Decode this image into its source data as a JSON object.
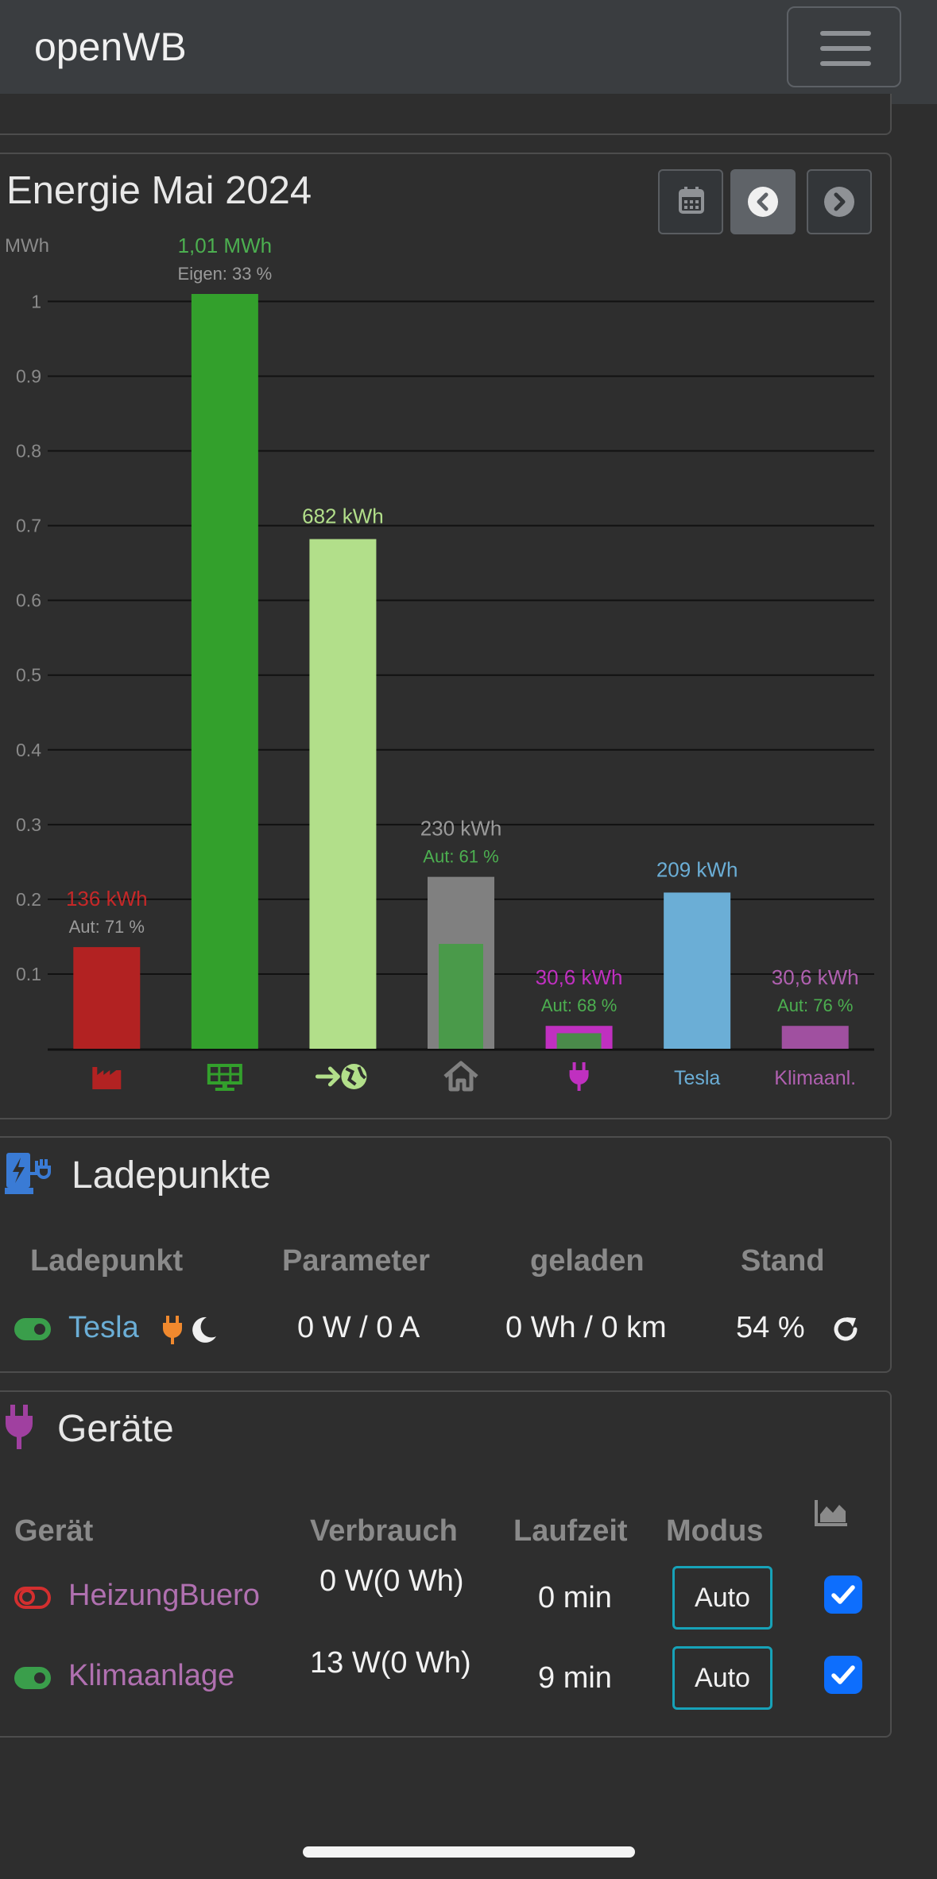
{
  "navbar": {
    "brand": "openWB",
    "menu_icon": "hamburger-icon"
  },
  "energy": {
    "title": "Energie Mai 2024",
    "nav_icons": [
      "calendar-icon",
      "chevron-left-circle-icon",
      "chevron-right-circle-icon"
    ]
  },
  "chart_data": {
    "type": "bar",
    "ylabel": "MWh",
    "ylim": [
      0,
      1.01
    ],
    "yticks": [
      "0.1",
      "0.2",
      "0.3",
      "0.4",
      "0.5",
      "0.6",
      "0.7",
      "0.8",
      "0.9",
      "1"
    ],
    "grid": true,
    "bars": [
      {
        "id": "import",
        "icon": "factory-icon",
        "value": 0.136,
        "label": "136 kWh",
        "sub": "Aut: 71 %",
        "color": "#b22222",
        "label_color": "#c62828",
        "sub_color": "#9a9a9a"
      },
      {
        "id": "pv",
        "icon": "solar-panel-icon",
        "value": 1.01,
        "label": "1,01 MWh",
        "sub": "Eigen: 33 %",
        "color": "#33a02c",
        "label_color": "#4caf50",
        "sub_color": "#9a9a9a"
      },
      {
        "id": "export",
        "icon": "grid-export-icon",
        "value": 0.682,
        "label": "682 kWh",
        "sub": "",
        "color": "#b2df8a",
        "label_color": "#b2df8a",
        "sub_color": "#9a9a9a"
      },
      {
        "id": "house",
        "icon": "house-icon",
        "value": 0.23,
        "inner_value": 0.1403,
        "label": "230 kWh",
        "sub": "Aut: 61 %",
        "color": "#808080",
        "inner_color": "#4a9a4a",
        "label_color": "#9a9a9a",
        "sub_color": "#4caf50"
      },
      {
        "id": "charging",
        "icon": "plug-icon",
        "value": 0.0306,
        "inner_value": 0.0208,
        "label": "30,6 kWh",
        "sub": "Aut: 68 %",
        "color": "#c030c0",
        "inner_color": "#4a8a4a",
        "label_color": "#c030c0",
        "sub_color": "#4caf50"
      },
      {
        "id": "tesla",
        "text": "Tesla",
        "value": 0.209,
        "label": "209 kWh",
        "sub": "",
        "color": "#6baed6",
        "label_color": "#6baed6",
        "sub_color": "#9a9a9a"
      },
      {
        "id": "klima",
        "text": "Klimaanl.",
        "value": 0.0306,
        "label": "30,6 kWh",
        "sub": "Aut: 76 %",
        "color": "#a050a0",
        "label_color": "#b060b0",
        "sub_color": "#4caf50"
      }
    ]
  },
  "ladepunkte": {
    "title": "Ladepunkte",
    "headers": {
      "ladepunkt": "Ladepunkt",
      "parameter": "Parameter",
      "geladen": "geladen",
      "stand": "Stand"
    },
    "rows": [
      {
        "name": "Tesla",
        "enabled": true,
        "parameter": "0 W / 0 A",
        "geladen": "0 Wh / 0 km",
        "stand": "54 %"
      }
    ]
  },
  "geraete": {
    "title": "Geräte",
    "headers": {
      "geraet": "Gerät",
      "verbrauch": "Verbrauch",
      "laufzeit": "Laufzeit",
      "modus": "Modus"
    },
    "rows": [
      {
        "name": "HeizungBuero",
        "enabled": false,
        "verbrauch": "0 W(0 Wh)",
        "laufzeit": "0 min",
        "modus": "Auto",
        "checked": true
      },
      {
        "name": "Klimaanlage",
        "enabled": true,
        "verbrauch": "13 W(0 Wh)",
        "laufzeit": "9 min",
        "modus": "Auto",
        "checked": true
      }
    ]
  }
}
